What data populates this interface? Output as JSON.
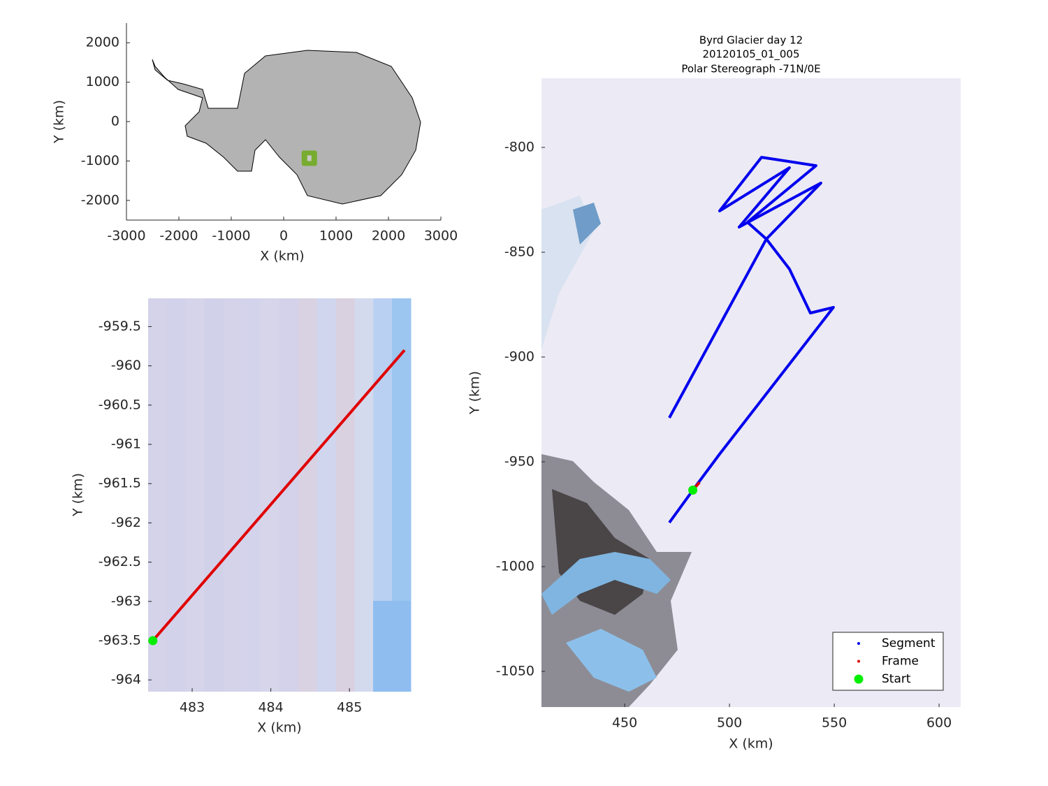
{
  "chart_data": [
    {
      "type": "map",
      "xlabel": "X (km)",
      "ylabel": "Y (km)",
      "xlim": [
        -3000,
        3000
      ],
      "xticks": [
        -3000,
        -2000,
        -1000,
        0,
        1000,
        2000,
        3000
      ],
      "ylim": [
        -2500,
        2500
      ],
      "yticks": [
        -2000,
        -1000,
        0,
        1000,
        2000
      ],
      "highlight": {
        "x": 490,
        "y": -930,
        "color": "#77ac30"
      }
    },
    {
      "type": "line",
      "xlabel": "X (km)",
      "ylabel": "Y (km)",
      "xlim": [
        482.44,
        485.78
      ],
      "xticks": [
        483,
        484,
        485
      ],
      "ylim": [
        -964.15,
        -959.14
      ],
      "yticks": [
        -959.5,
        -960,
        -960.5,
        -961,
        -961.5,
        -962,
        -962.5,
        -963,
        -963.5,
        -964
      ],
      "series": [
        {
          "color": "#e00000",
          "mode": "line",
          "x": [
            482.5,
            485.7
          ],
          "y": [
            -963.5,
            -959.8
          ]
        },
        {
          "color": "#00ee00",
          "mode": "marker",
          "x": [
            482.5
          ],
          "y": [
            -963.5
          ]
        }
      ]
    },
    {
      "type": "line",
      "title": [
        "Byrd Glacier day 12",
        "20120105_01_005",
        "Polar Stereograph -71N/0E"
      ],
      "xlabel": "X (km)",
      "ylabel": "Y (km)",
      "xlim": [
        410.3,
        610.3
      ],
      "xticks": [
        450,
        500,
        550,
        600
      ],
      "ylim": [
        -1067,
        -767
      ],
      "yticks": [
        -800,
        -850,
        -900,
        -950,
        -1000,
        -1050
      ],
      "legend": "lower right",
      "series": [
        {
          "name": "Segment",
          "color": "#0000ee",
          "mode": "line",
          "x": [
            471.3,
            517.6,
            543.6,
            504.6,
            528.6,
            495.3,
            515.3,
            541.3,
            508.6,
            517.6,
            528.6,
            538.6,
            549.6,
            495.3,
            484.6,
            471.3
          ],
          "y": [
            -929,
            -843.7,
            -817,
            -838,
            -809.7,
            -830.3,
            -804.7,
            -808.7,
            -835.7,
            -843.7,
            -858,
            -879,
            -876.3,
            -946.3,
            -960.7,
            -979
          ]
        },
        {
          "name": "Frame",
          "color": "#e00000",
          "mode": "line",
          "x": [
            482.5,
            485.7
          ],
          "y": [
            -963.5,
            -959.8
          ]
        },
        {
          "name": "Start",
          "color": "#00ee00",
          "mode": "marker",
          "x": [
            482.5
          ],
          "y": [
            -963.5
          ]
        }
      ]
    }
  ]
}
